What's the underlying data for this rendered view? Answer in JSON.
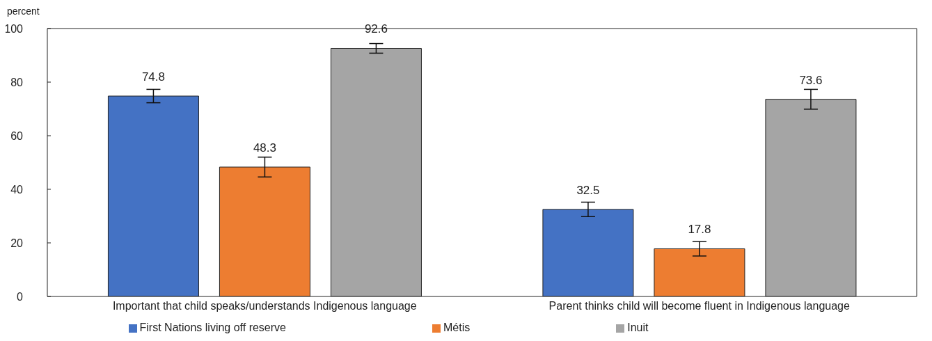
{
  "chart_data": {
    "type": "bar",
    "ylabel": "percent",
    "categories": [
      "Important that child speaks/understands Indigenous language",
      "Parent thinks child will become fluent in Indigenous language"
    ],
    "series": [
      {
        "name": "First Nations living off reserve",
        "color": "#4472c4",
        "values": [
          74.8,
          32.5
        ],
        "errors": [
          2.5,
          2.7
        ]
      },
      {
        "name": "Métis",
        "color": "#ed7d31",
        "values": [
          48.3,
          17.8
        ],
        "errors": [
          3.7,
          2.7
        ]
      },
      {
        "name": "Inuit",
        "color": "#a5a5a5",
        "values": [
          92.6,
          73.6
        ],
        "errors": [
          1.8,
          3.7
        ]
      }
    ],
    "ylim": [
      0,
      100
    ],
    "yticks": [
      0,
      20,
      40,
      60,
      80,
      100
    ],
    "data_labels": true,
    "grid": false,
    "legend": "bottom"
  }
}
